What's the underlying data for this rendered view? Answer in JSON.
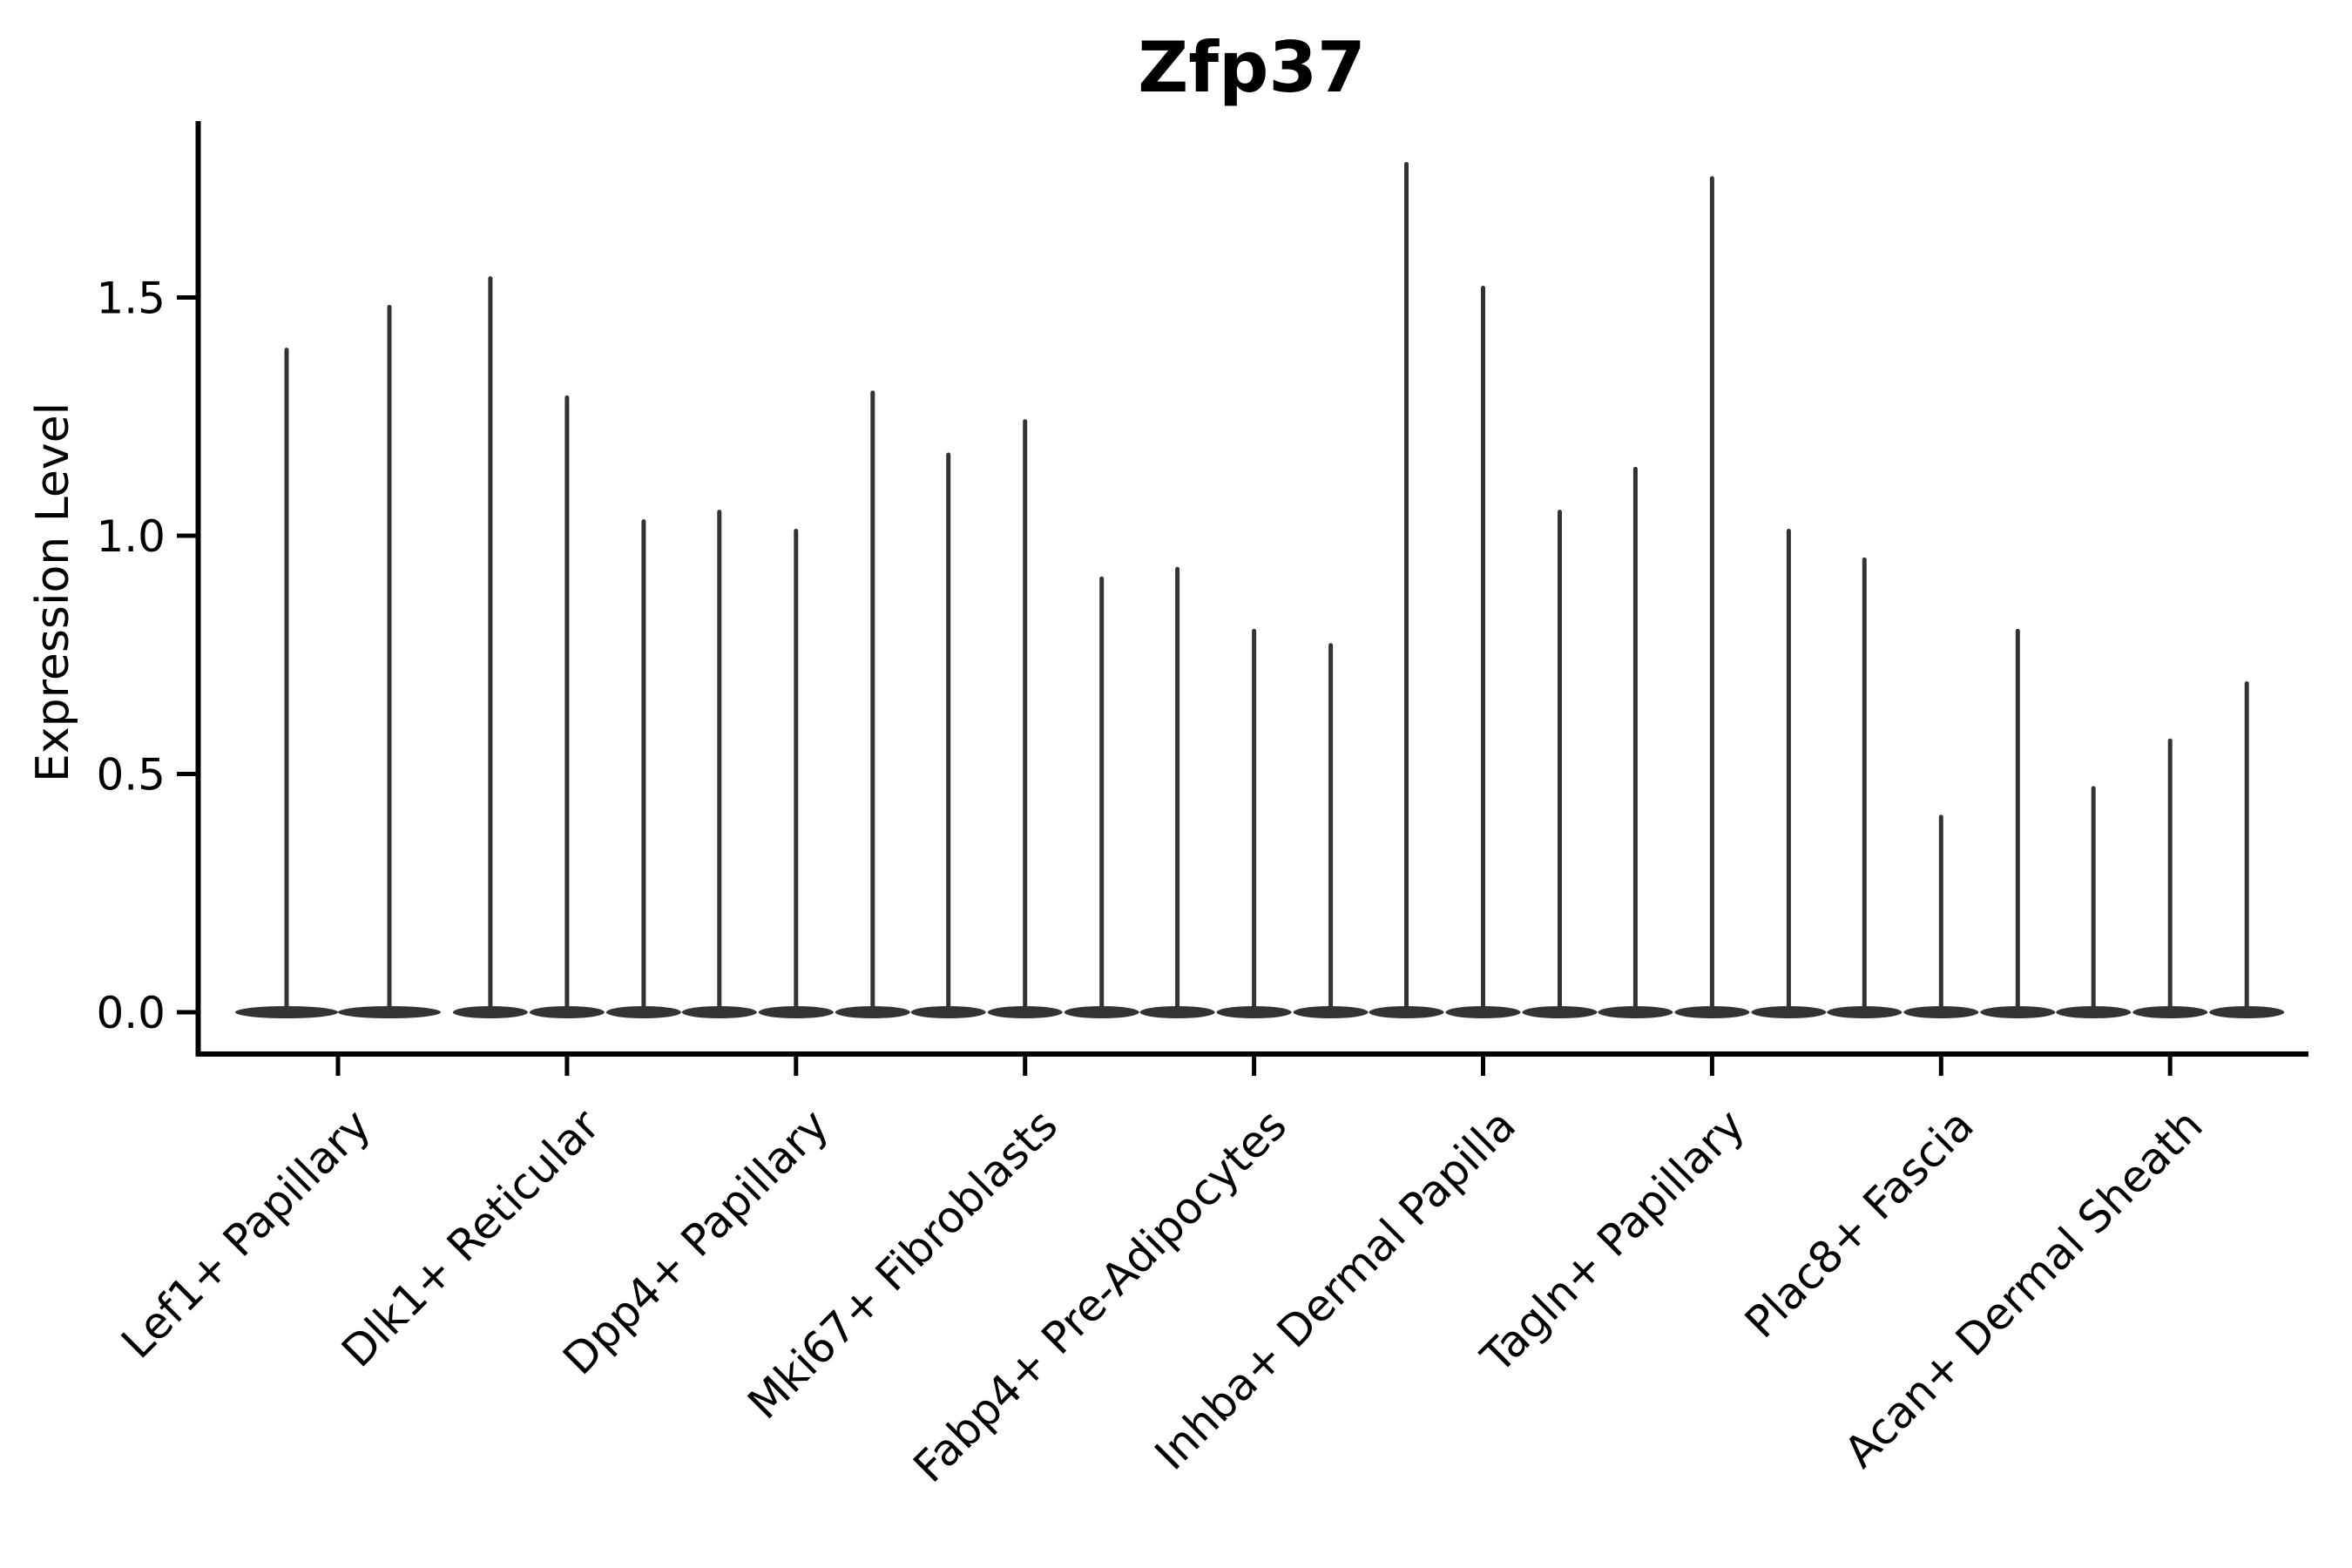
{
  "figure": {
    "background": "#ffffff"
  },
  "chart_data": {
    "type": "violin",
    "title": "Zfp37",
    "ylabel": "Expression Level",
    "xlabel": "",
    "yticks": [
      "0.0",
      "0.5",
      "1.0",
      "1.5"
    ],
    "ylim": [
      -0.09,
      1.87
    ],
    "grid": false,
    "legend": "none",
    "violin_style": "sparse single-cell expression violins: each violin collapses to a flat basal lens at 0 with a hair-thin spike rising to its maximum expression value",
    "categories": [
      "Lef1+ Papillary",
      "Dlk1+ Reticular",
      "Dpp4+ Papillary",
      "Mki67+ Fibroblasts",
      "Fabp4+ Pre-Adipocytes",
      "Inhba+ Dermal Papilla",
      "Tagln+ Papillary",
      "Plac8+ Fascia",
      "Acan+ Dermal Sheath"
    ],
    "series": [
      {
        "category": "Lef1+ Papillary",
        "violin_peaks": [
          1.39,
          1.48
        ]
      },
      {
        "category": "Dlk1+ Reticular",
        "violin_peaks": [
          1.54,
          1.29,
          1.03
        ]
      },
      {
        "category": "Dpp4+ Papillary",
        "violin_peaks": [
          1.05,
          1.01,
          1.3
        ]
      },
      {
        "category": "Mki67+ Fibroblasts",
        "violin_peaks": [
          1.17,
          1.24,
          0.91
        ]
      },
      {
        "category": "Fabp4+ Pre-Adipocytes",
        "violin_peaks": [
          0.93,
          0.8,
          0.77
        ]
      },
      {
        "category": "Inhba+ Dermal Papilla",
        "violin_peaks": [
          1.78,
          1.52,
          1.05
        ]
      },
      {
        "category": "Tagln+ Papillary",
        "violin_peaks": [
          1.14,
          1.75,
          1.01
        ]
      },
      {
        "category": "Plac8+ Fascia",
        "violin_peaks": [
          0.95,
          0.41,
          0.8
        ]
      },
      {
        "category": "Acan+ Dermal Sheath",
        "violin_peaks": [
          0.47,
          0.57,
          0.69
        ]
      }
    ],
    "colors": {
      "violin": "#333333",
      "axis": "#000000",
      "text": "#000000",
      "background": "#ffffff"
    }
  }
}
